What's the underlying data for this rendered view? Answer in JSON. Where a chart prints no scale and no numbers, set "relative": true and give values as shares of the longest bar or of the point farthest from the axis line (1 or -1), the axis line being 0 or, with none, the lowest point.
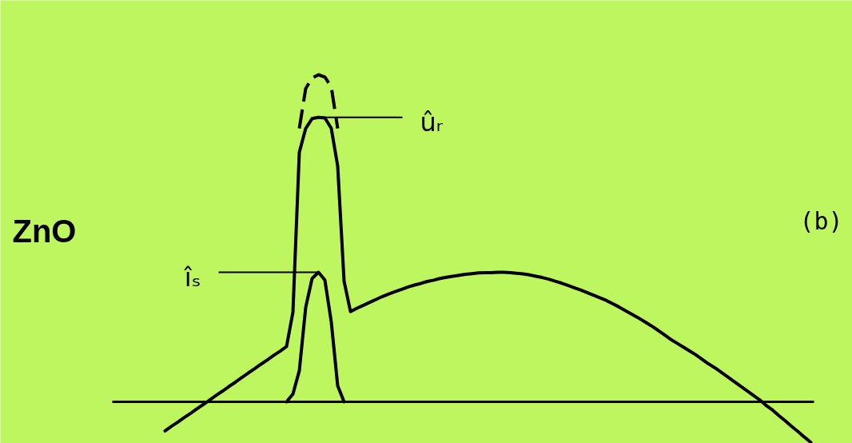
{
  "chart_data": {
    "type": "line",
    "title": "ZnO",
    "relative": true,
    "categories": [
      null,
      null,
      null,
      null,
      null,
      null,
      null,
      null,
      null,
      null,
      null,
      null,
      null,
      null,
      null,
      null,
      null,
      null,
      null,
      null,
      null,
      null,
      null,
      null,
      null,
      null,
      null,
      null,
      null,
      null,
      null,
      null,
      null,
      null,
      null,
      null,
      null,
      null,
      null,
      null,
      null,
      null,
      null,
      null,
      null,
      null,
      null,
      null,
      null,
      null,
      null,
      null,
      null,
      null,
      null,
      null,
      null,
      null,
      null,
      null,
      null,
      null,
      null,
      null,
      null,
      null,
      null,
      null,
      null,
      null,
      null,
      null,
      null,
      null,
      null,
      null,
      null,
      null,
      null,
      null,
      null,
      null,
      null,
      null,
      null,
      null,
      null,
      null,
      null,
      null,
      null,
      null,
      null,
      null,
      null,
      null,
      null,
      null,
      null,
      null,
      null,
      null
    ],
    "series": [
      {
        "color": "#000000",
        "values": [
          -0.089,
          -0.075,
          -0.062,
          -0.048,
          -0.035,
          -0.021,
          -0.008,
          0.006,
          0.02,
          0.033,
          0.047,
          0.06,
          0.074,
          0.088,
          0.101,
          0.115,
          0.128,
          0.142,
          0.155,
          0.169,
          0.274,
          0.763,
          0.836,
          0.866,
          0.87,
          0.868,
          0.836,
          0.721,
          0.369,
          0.276,
          0.286,
          0.295,
          0.304,
          0.313,
          0.322,
          0.33,
          0.337,
          0.344,
          0.351,
          0.357,
          0.362,
          0.368,
          0.372,
          0.377,
          0.381,
          0.384,
          0.387,
          0.39,
          0.392,
          0.394,
          0.395,
          0.395,
          0.396,
          0.396,
          0.395,
          0.393,
          0.391,
          0.388,
          0.384,
          0.38,
          0.375,
          0.369,
          0.363,
          0.356,
          0.349,
          0.342,
          0.334,
          0.326,
          0.318,
          0.31,
          0.3,
          0.29,
          0.279,
          0.268,
          0.257,
          0.245,
          0.233,
          0.22,
          0.206,
          0.192,
          0.18,
          0.168,
          0.156,
          0.144,
          0.13,
          0.116,
          0.104,
          0.09,
          0.076,
          0.062,
          0.048,
          0.034,
          0.02,
          0.006,
          -0.011,
          -0.025,
          -0.042,
          -0.058,
          -0.075,
          -0.091,
          -0.108,
          -0.124
        ]
      },
      {
        "color": "#000000",
        "line_style": "dashed",
        "values": [
          null,
          null,
          null,
          null,
          null,
          null,
          null,
          null,
          null,
          null,
          null,
          null,
          null,
          null,
          null,
          null,
          null,
          null,
          null,
          null,
          null,
          0.836,
          0.958,
          0.99,
          1.0,
          0.993,
          0.963,
          0.836,
          null,
          null,
          null,
          null,
          null,
          null,
          null,
          null,
          null,
          null,
          null,
          null,
          null,
          null,
          null,
          null,
          null,
          null,
          null,
          null,
          null,
          null,
          null,
          null,
          null,
          null,
          null,
          null,
          null,
          null,
          null,
          null,
          null,
          null,
          null,
          null,
          null,
          null,
          null,
          null,
          null,
          null,
          null,
          null,
          null,
          null,
          null,
          null,
          null,
          null,
          null,
          null,
          null,
          null,
          null,
          null,
          null,
          null,
          null,
          null,
          null,
          null,
          null,
          null,
          null,
          null,
          null,
          null,
          null,
          null,
          null,
          null,
          null,
          null
        ]
      },
      {
        "color": "#000000",
        "values": [
          null,
          null,
          null,
          null,
          null,
          null,
          null,
          null,
          null,
          null,
          null,
          null,
          null,
          null,
          null,
          null,
          null,
          null,
          null,
          0.0,
          0.024,
          0.095,
          0.289,
          0.377,
          0.396,
          0.372,
          0.244,
          0.049,
          0.0,
          null,
          null,
          null,
          null,
          null,
          null,
          null,
          null,
          null,
          null,
          null,
          null,
          null,
          null,
          null,
          null,
          null,
          null,
          null,
          null,
          null,
          null,
          null,
          null,
          null,
          null,
          null,
          null,
          null,
          null,
          null,
          null,
          null,
          null,
          null,
          null,
          null,
          null,
          null,
          null,
          null,
          null,
          null,
          null,
          null,
          null,
          null,
          null,
          null,
          null,
          null,
          null,
          null,
          null,
          null,
          null,
          null,
          null,
          null,
          null,
          null,
          null,
          null,
          null,
          null,
          null,
          null,
          null,
          null,
          null,
          null,
          null,
          null
        ]
      }
    ],
    "annotations": [
      "ûᵣ",
      "îₛ",
      "(b)"
    ]
  }
}
